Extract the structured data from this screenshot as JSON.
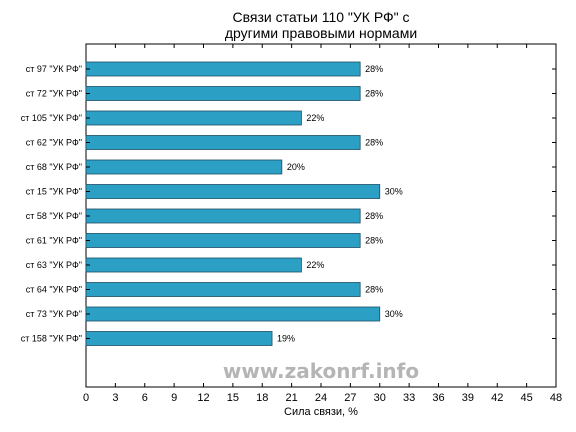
{
  "chart_data": {
    "type": "bar",
    "orientation": "horizontal",
    "title_lines": [
      "Связи статьи 110 \"УК РФ\" с",
      "другими правовыми нормами"
    ],
    "xlabel": "Сила связи, %",
    "ylabel": "",
    "xlim": [
      0,
      48
    ],
    "xticks": [
      0,
      3,
      6,
      9,
      12,
      15,
      18,
      21,
      24,
      27,
      30,
      33,
      36,
      39,
      42,
      45,
      48
    ],
    "categories": [
      "ст 97 \"УК РФ\"",
      "ст 72 \"УК РФ\"",
      "ст 105 \"УК РФ\"",
      "ст 62 \"УК РФ\"",
      "ст 68 \"УК РФ\"",
      "ст 15 \"УК РФ\"",
      "ст 58 \"УК РФ\"",
      "ст 61 \"УК РФ\"",
      "ст 63 \"УК РФ\"",
      "ст 64 \"УК РФ\"",
      "ст 73 \"УК РФ\"",
      "ст 158 \"УК РФ\""
    ],
    "values": [
      28,
      28,
      22,
      28,
      20,
      30,
      28,
      28,
      22,
      28,
      30,
      19
    ],
    "value_labels": [
      "28%",
      "28%",
      "22%",
      "28%",
      "20%",
      "30%",
      "28%",
      "28%",
      "22%",
      "28%",
      "30%",
      "19%"
    ],
    "bar_color": "#2b9fc4",
    "bar_edge_color": "#1d4f66",
    "grid": false,
    "legend": "none"
  },
  "watermark": "www.zakonrf.info"
}
